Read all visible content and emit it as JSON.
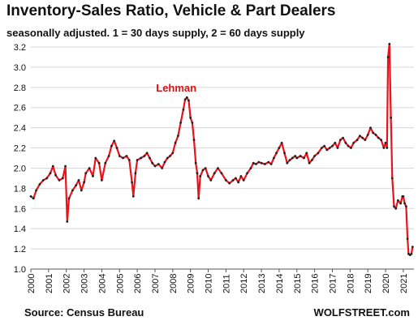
{
  "chart_data": {
    "type": "line",
    "title": "Inventory-Sales Ratio, Vehicle & Part Dealers",
    "subtitle": "seasonally adjusted. 1 = 30 days supply, 2 = 60 days supply",
    "source": "Source: Census Bureau",
    "brand": "WOLFSTREET.com",
    "annotation": {
      "text": "Lehman",
      "x": 2008.2,
      "y": 2.8
    },
    "xlim": [
      2000,
      2021.6
    ],
    "ylim": [
      1.0,
      3.2
    ],
    "yticks": [
      "1.0",
      "1.2",
      "1.4",
      "1.6",
      "1.8",
      "2.0",
      "2.2",
      "2.4",
      "2.6",
      "2.8",
      "3.0",
      "3.2"
    ],
    "xticks": [
      "2000",
      "2001",
      "2002",
      "2003",
      "2004",
      "2005",
      "2006",
      "2007",
      "2008",
      "2009",
      "2010",
      "2011",
      "2012",
      "2013",
      "2014",
      "2015",
      "2016",
      "2017",
      "2018",
      "2019",
      "2020",
      "2021"
    ],
    "grid": "horizontal",
    "line_color": "#e8141b",
    "marker_color": "#222222",
    "points": [
      [
        2000.0,
        1.72
      ],
      [
        2000.15,
        1.7
      ],
      [
        2000.3,
        1.78
      ],
      [
        2000.5,
        1.84
      ],
      [
        2000.7,
        1.88
      ],
      [
        2000.9,
        1.9
      ],
      [
        2001.1,
        1.95
      ],
      [
        2001.25,
        2.02
      ],
      [
        2001.4,
        1.93
      ],
      [
        2001.6,
        1.88
      ],
      [
        2001.8,
        1.9
      ],
      [
        2001.95,
        2.02
      ],
      [
        2002.05,
        1.47
      ],
      [
        2002.15,
        1.7
      ],
      [
        2002.35,
        1.78
      ],
      [
        2002.55,
        1.83
      ],
      [
        2002.7,
        1.88
      ],
      [
        2002.85,
        1.78
      ],
      [
        2003.0,
        1.86
      ],
      [
        2003.1,
        1.95
      ],
      [
        2003.3,
        2.0
      ],
      [
        2003.5,
        1.92
      ],
      [
        2003.65,
        2.1
      ],
      [
        2003.85,
        2.05
      ],
      [
        2004.0,
        1.88
      ],
      [
        2004.2,
        2.05
      ],
      [
        2004.4,
        2.12
      ],
      [
        2004.55,
        2.22
      ],
      [
        2004.7,
        2.27
      ],
      [
        2004.85,
        2.2
      ],
      [
        2005.0,
        2.12
      ],
      [
        2005.2,
        2.1
      ],
      [
        2005.4,
        2.12
      ],
      [
        2005.55,
        2.08
      ],
      [
        2005.7,
        1.86
      ],
      [
        2005.78,
        1.72
      ],
      [
        2005.9,
        1.95
      ],
      [
        2006.0,
        2.08
      ],
      [
        2006.2,
        2.1
      ],
      [
        2006.4,
        2.12
      ],
      [
        2006.55,
        2.15
      ],
      [
        2006.7,
        2.1
      ],
      [
        2006.85,
        2.05
      ],
      [
        2007.0,
        2.02
      ],
      [
        2007.2,
        2.04
      ],
      [
        2007.4,
        2.0
      ],
      [
        2007.55,
        2.06
      ],
      [
        2007.7,
        2.1
      ],
      [
        2007.85,
        2.12
      ],
      [
        2008.0,
        2.15
      ],
      [
        2008.15,
        2.25
      ],
      [
        2008.3,
        2.32
      ],
      [
        2008.45,
        2.45
      ],
      [
        2008.6,
        2.58
      ],
      [
        2008.7,
        2.68
      ],
      [
        2008.8,
        2.7
      ],
      [
        2008.9,
        2.67
      ],
      [
        2009.0,
        2.5
      ],
      [
        2009.1,
        2.45
      ],
      [
        2009.2,
        2.28
      ],
      [
        2009.3,
        2.05
      ],
      [
        2009.38,
        1.95
      ],
      [
        2009.46,
        1.7
      ],
      [
        2009.55,
        1.92
      ],
      [
        2009.7,
        1.98
      ],
      [
        2009.85,
        2.0
      ],
      [
        2010.0,
        1.92
      ],
      [
        2010.15,
        1.88
      ],
      [
        2010.35,
        1.95
      ],
      [
        2010.55,
        2.0
      ],
      [
        2010.75,
        1.95
      ],
      [
        2011.0,
        1.88
      ],
      [
        2011.2,
        1.85
      ],
      [
        2011.4,
        1.88
      ],
      [
        2011.55,
        1.9
      ],
      [
        2011.7,
        1.86
      ],
      [
        2011.85,
        1.92
      ],
      [
        2012.0,
        1.88
      ],
      [
        2012.2,
        1.95
      ],
      [
        2012.4,
        2.0
      ],
      [
        2012.55,
        2.05
      ],
      [
        2012.7,
        2.04
      ],
      [
        2012.85,
        2.06
      ],
      [
        2013.0,
        2.05
      ],
      [
        2013.2,
        2.04
      ],
      [
        2013.4,
        2.06
      ],
      [
        2013.55,
        2.04
      ],
      [
        2013.7,
        2.1
      ],
      [
        2013.85,
        2.15
      ],
      [
        2014.0,
        2.2
      ],
      [
        2014.15,
        2.25
      ],
      [
        2014.3,
        2.15
      ],
      [
        2014.45,
        2.05
      ],
      [
        2014.6,
        2.08
      ],
      [
        2014.75,
        2.1
      ],
      [
        2014.9,
        2.12
      ],
      [
        2015.0,
        2.1
      ],
      [
        2015.2,
        2.12
      ],
      [
        2015.4,
        2.1
      ],
      [
        2015.55,
        2.15
      ],
      [
        2015.7,
        2.05
      ],
      [
        2015.85,
        2.08
      ],
      [
        2016.0,
        2.12
      ],
      [
        2016.2,
        2.15
      ],
      [
        2016.4,
        2.2
      ],
      [
        2016.55,
        2.22
      ],
      [
        2016.7,
        2.18
      ],
      [
        2016.85,
        2.2
      ],
      [
        2017.0,
        2.22
      ],
      [
        2017.15,
        2.25
      ],
      [
        2017.3,
        2.2
      ],
      [
        2017.45,
        2.28
      ],
      [
        2017.6,
        2.3
      ],
      [
        2017.75,
        2.25
      ],
      [
        2017.9,
        2.22
      ],
      [
        2018.05,
        2.2
      ],
      [
        2018.2,
        2.25
      ],
      [
        2018.4,
        2.28
      ],
      [
        2018.55,
        2.32
      ],
      [
        2018.7,
        2.3
      ],
      [
        2018.85,
        2.28
      ],
      [
        2019.0,
        2.33
      ],
      [
        2019.15,
        2.4
      ],
      [
        2019.3,
        2.35
      ],
      [
        2019.45,
        2.33
      ],
      [
        2019.6,
        2.3
      ],
      [
        2019.75,
        2.28
      ],
      [
        2019.9,
        2.2
      ],
      [
        2020.0,
        2.25
      ],
      [
        2020.08,
        2.2
      ],
      [
        2020.14,
        3.1
      ],
      [
        2020.22,
        3.23
      ],
      [
        2020.3,
        2.5
      ],
      [
        2020.38,
        1.9
      ],
      [
        2020.48,
        1.62
      ],
      [
        2020.58,
        1.6
      ],
      [
        2020.7,
        1.68
      ],
      [
        2020.85,
        1.65
      ],
      [
        2020.95,
        1.72
      ],
      [
        2021.0,
        1.72
      ],
      [
        2021.08,
        1.65
      ],
      [
        2021.16,
        1.62
      ],
      [
        2021.24,
        1.3
      ],
      [
        2021.3,
        1.15
      ],
      [
        2021.38,
        1.14
      ],
      [
        2021.46,
        1.15
      ],
      [
        2021.52,
        1.22
      ]
    ]
  }
}
